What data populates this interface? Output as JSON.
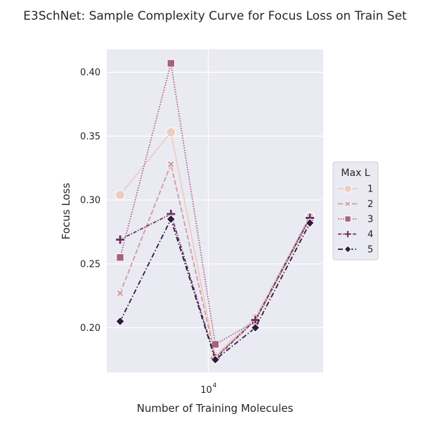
{
  "chart_data": {
    "type": "line",
    "title": "E3SchNet: Sample Complexity Curve for Focus Loss on Train Set",
    "xlabel": "Number of Training Molecules",
    "ylabel": "Focus Loss",
    "xscale": "log",
    "x": [
      3000,
      6000,
      11000,
      19000,
      40000
    ],
    "xticks": [
      {
        "value": 10000,
        "base": "10",
        "exp": "4"
      }
    ],
    "xlim": [
      2500,
      48000
    ],
    "ylim": [
      0.165,
      0.418
    ],
    "yticks": [
      "0.20",
      "0.25",
      "0.30",
      "0.35",
      "0.40"
    ],
    "grid": true,
    "legend": {
      "title": "Max L",
      "position": "right"
    },
    "series": [
      {
        "name": "1",
        "values": [
          0.304,
          0.353,
          0.178,
          0.208,
          0.287
        ],
        "color": "#eccdc4",
        "marker": "circle",
        "dash": "solid"
      },
      {
        "name": "2",
        "values": [
          0.227,
          0.328,
          0.177,
          0.206,
          0.287
        ],
        "color": "#d39a9e",
        "marker": "x",
        "dash": "long"
      },
      {
        "name": "3",
        "values": [
          0.255,
          0.407,
          0.187,
          0.205,
          0.285
        ],
        "color": "#a8607f",
        "marker": "square",
        "dash": "dotted"
      },
      {
        "name": "4",
        "values": [
          0.269,
          0.289,
          0.176,
          0.206,
          0.286
        ],
        "color": "#6b3463",
        "marker": "plus",
        "dash": "dashdot-dense"
      },
      {
        "name": "5",
        "values": [
          0.205,
          0.285,
          0.175,
          0.2,
          0.282
        ],
        "color": "#2d1a3c",
        "marker": "diamond",
        "dash": "dashdot"
      }
    ]
  }
}
